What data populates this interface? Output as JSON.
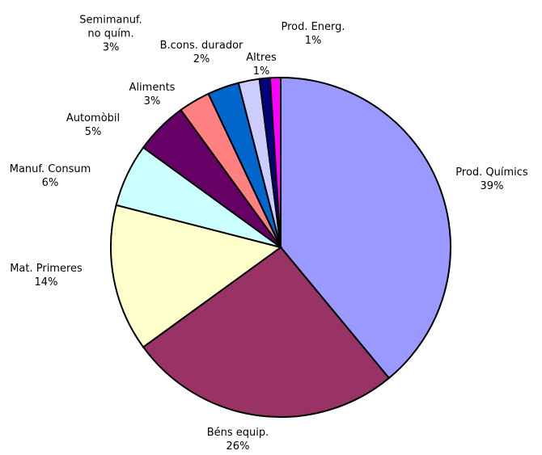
{
  "chart_data": {
    "type": "pie",
    "categories": [
      "Prod. Químics",
      "Béns equip.",
      "Mat. Primeres",
      "Manuf. Consum",
      "Automòbil",
      "Aliments",
      "Semimanuf. no quím.",
      "B.cons. durador",
      "Altres",
      "Prod. Energ."
    ],
    "values": [
      39,
      26,
      14,
      6,
      5,
      3,
      3,
      2,
      1,
      1
    ],
    "value_labels": [
      "39%",
      "26%",
      "14%",
      "6%",
      "5%",
      "3%",
      "3%",
      "2%",
      "1%",
      "1%"
    ],
    "colors": [
      "#9999ff",
      "#993366",
      "#ffffcc",
      "#ccffff",
      "#660066",
      "#ff8080",
      "#0066cc",
      "#ccccff",
      "#000080",
      "#ff00ff"
    ]
  }
}
